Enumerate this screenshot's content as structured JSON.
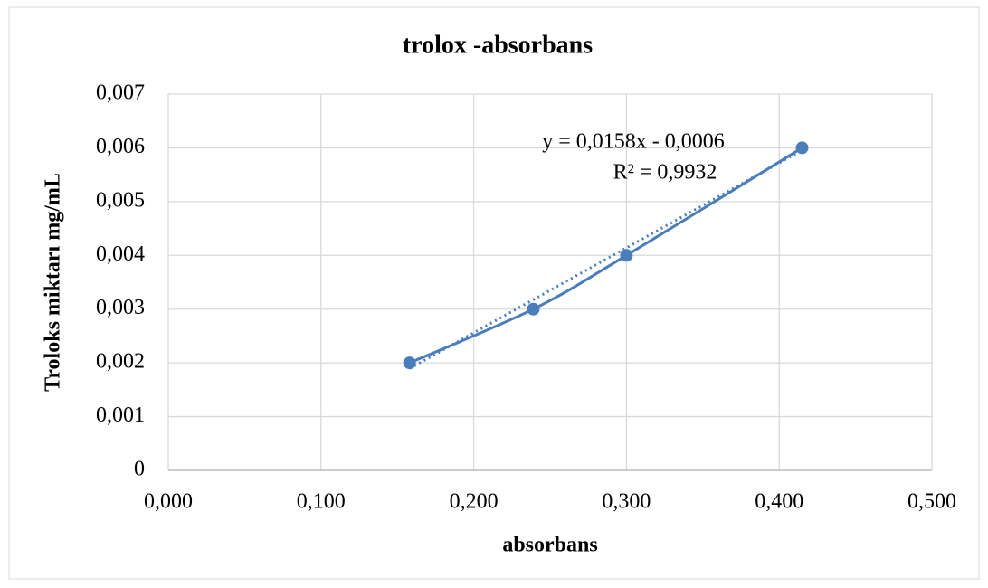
{
  "chart_data": {
    "type": "scatter",
    "title": "trolox -absorbans",
    "x_label": "absorbans",
    "y_label": "Troloks miktarı mg/mL",
    "x": [
      0.158,
      0.239,
      0.3,
      0.415
    ],
    "series": [
      {
        "color": "#4a7ebb",
        "values": [
          0.002,
          0.003,
          0.004,
          0.006
        ]
      }
    ],
    "smooth": true,
    "xlim": [
      0,
      0.5
    ],
    "xticks": [
      {
        "value": 0,
        "label": "0,000"
      },
      {
        "value": 0.1,
        "label": "0,100"
      },
      {
        "value": 0.2,
        "label": "0,200"
      },
      {
        "value": 0.3,
        "label": "0,300"
      },
      {
        "value": 0.4,
        "label": "0,400"
      },
      {
        "value": 0.5,
        "label": "0,500"
      }
    ],
    "ylim": [
      0,
      0.007
    ],
    "yticks": [
      0,
      {
        "value": 0.001,
        "label": "0,001"
      },
      {
        "value": 0.002,
        "label": "0,002"
      },
      {
        "value": 0.003,
        "label": "0,003"
      },
      {
        "value": 0.004,
        "label": "0,004"
      },
      {
        "value": 0.005,
        "label": "0,005"
      },
      {
        "value": 0.006,
        "label": "0,006"
      },
      {
        "value": 0.007,
        "label": "0,007"
      }
    ],
    "grid": true,
    "trendline": {
      "slope": 0.0158,
      "intercept": -0.0006,
      "equation": "y = 0,0158x - 0,0006",
      "r2": "R² = 0,9932"
    }
  }
}
